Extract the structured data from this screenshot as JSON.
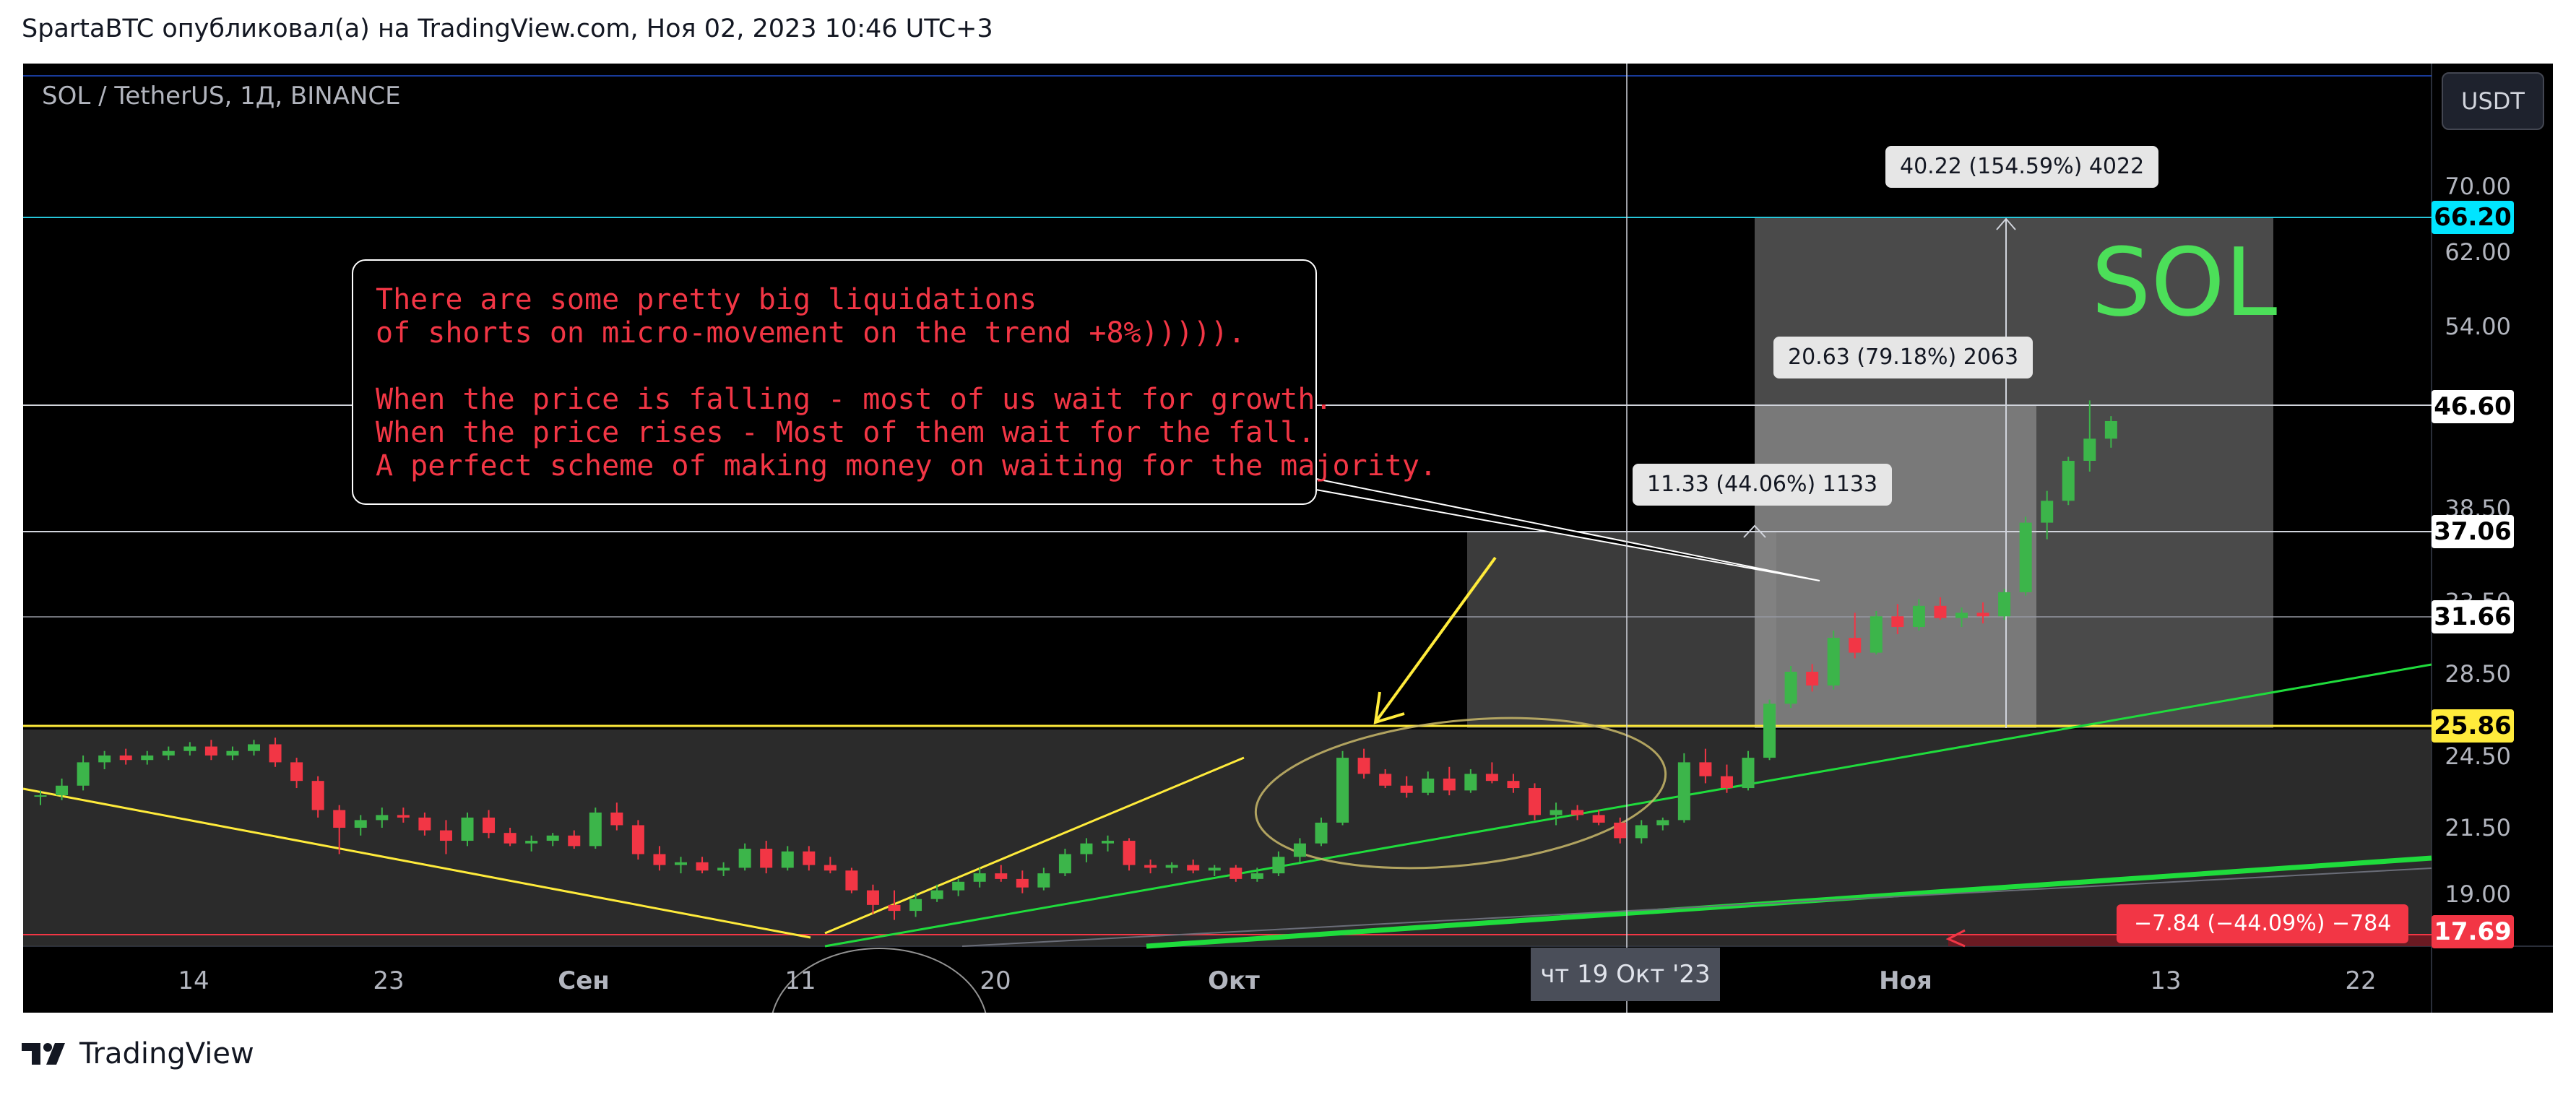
{
  "header": {
    "text": "SpartaBTC опубликовал(а) на TradingView.com, Ноя 02, 2023 10:46 UTC+3"
  },
  "symbol": {
    "title": "SOL / TetherUS, 1Д, BINANCE",
    "currency_button": "USDT"
  },
  "annotation": {
    "callout_text": "There are some pretty big liquidations\nof shorts on micro-movement on the trend +8%))))).\n\nWhen the price is falling - most of us wait for growth.\nWhen the price rises - Most of them wait for the fall.\nA perfect scheme of making money on waiting for the majority.",
    "watermark": "SOL"
  },
  "measurements": {
    "top": "40.22 (154.59%) 4022",
    "mid": "20.63 (79.18%) 2063",
    "low": "11.33 (44.06%) 1133",
    "down": "−7.84 (−44.09%) −784"
  },
  "price_axis": {
    "labels": [
      "70.00",
      "62.00",
      "54.00",
      "38.50",
      "33.50",
      "28.50",
      "24.50",
      "21.50",
      "19.00"
    ],
    "badges": [
      {
        "value": "66.20",
        "bg": "#00e5ff",
        "color": "#000000"
      },
      {
        "value": "46.60",
        "bg": "#ffffff",
        "color": "#000000"
      },
      {
        "value": "37.06",
        "bg": "#ffffff",
        "color": "#000000"
      },
      {
        "value": "31.66",
        "bg": "#ffffff",
        "color": "#000000"
      },
      {
        "value": "25.86",
        "bg": "#ffeb3b",
        "color": "#000000"
      },
      {
        "value": "17.69",
        "bg": "#f23645",
        "color": "#ffffff"
      }
    ]
  },
  "time_axis": {
    "labels": [
      "14",
      "23",
      "Сен",
      "11",
      "20",
      "Окт",
      "Ноя",
      "13",
      "22"
    ],
    "crosshair_date": "чт 19 Окт '23"
  },
  "footer": {
    "brand": "TradingView"
  },
  "colors": {
    "up": "#26a69a",
    "up_candle": "#3cb54a",
    "down": "#f23645",
    "yellow": "#ffeb3b",
    "cyan": "#00e5ff",
    "green_line": "#1fdc3c"
  },
  "chart_data": {
    "type": "candlestick",
    "title": "SOL / TetherUS, 1Д, BINANCE",
    "y_scale": "log",
    "ylim": [
      17.5,
      78
    ],
    "x_ticks": [
      "14",
      "23",
      "Сен",
      "11",
      "20",
      "Окт",
      "Ноя",
      "13",
      "22"
    ],
    "horizontal_levels": [
      66.2,
      46.6,
      37.06,
      31.66,
      25.86,
      17.69
    ],
    "candles": [
      [
        22.9,
        23.1,
        22.5,
        22.9
      ],
      [
        22.9,
        23.6,
        22.7,
        23.3
      ],
      [
        23.3,
        24.6,
        23.1,
        24.3
      ],
      [
        24.3,
        24.8,
        24.0,
        24.6
      ],
      [
        24.6,
        24.9,
        24.2,
        24.4
      ],
      [
        24.4,
        24.8,
        24.2,
        24.6
      ],
      [
        24.6,
        25.0,
        24.4,
        24.8
      ],
      [
        24.8,
        25.2,
        24.6,
        25.0
      ],
      [
        25.0,
        25.3,
        24.4,
        24.6
      ],
      [
        24.6,
        25.0,
        24.4,
        24.8
      ],
      [
        24.8,
        25.3,
        24.6,
        25.1
      ],
      [
        25.1,
        25.4,
        24.1,
        24.3
      ],
      [
        24.3,
        24.5,
        23.2,
        23.5
      ],
      [
        23.5,
        23.7,
        22.0,
        22.3
      ],
      [
        22.3,
        22.5,
        20.6,
        21.6
      ],
      [
        21.6,
        22.1,
        21.3,
        21.9
      ],
      [
        21.9,
        22.4,
        21.6,
        22.1
      ],
      [
        22.1,
        22.4,
        21.8,
        22.0
      ],
      [
        22.0,
        22.2,
        21.3,
        21.5
      ],
      [
        21.5,
        21.9,
        20.6,
        21.1
      ],
      [
        21.1,
        22.2,
        20.9,
        22.0
      ],
      [
        22.0,
        22.3,
        21.2,
        21.4
      ],
      [
        21.4,
        21.6,
        20.9,
        21.0
      ],
      [
        21.0,
        21.3,
        20.7,
        21.1
      ],
      [
        21.1,
        21.4,
        20.9,
        21.3
      ],
      [
        21.3,
        21.5,
        20.8,
        20.9
      ],
      [
        20.9,
        22.4,
        20.8,
        22.2
      ],
      [
        22.2,
        22.6,
        21.5,
        21.7
      ],
      [
        21.7,
        21.9,
        20.4,
        20.6
      ],
      [
        20.6,
        20.9,
        20.0,
        20.2
      ],
      [
        20.2,
        20.5,
        19.9,
        20.3
      ],
      [
        20.3,
        20.5,
        19.9,
        20.0
      ],
      [
        20.0,
        20.3,
        19.8,
        20.1
      ],
      [
        20.1,
        21.0,
        20.0,
        20.8
      ],
      [
        20.8,
        21.1,
        19.9,
        20.1
      ],
      [
        20.1,
        20.9,
        20.0,
        20.7
      ],
      [
        20.7,
        20.9,
        20.0,
        20.2
      ],
      [
        20.2,
        20.5,
        19.9,
        20.0
      ],
      [
        20.0,
        20.1,
        19.2,
        19.3
      ],
      [
        19.3,
        19.5,
        18.5,
        18.8
      ],
      [
        18.8,
        19.3,
        18.3,
        18.6
      ],
      [
        18.6,
        19.2,
        18.4,
        19.0
      ],
      [
        19.0,
        19.5,
        18.9,
        19.3
      ],
      [
        19.3,
        19.7,
        19.1,
        19.6
      ],
      [
        19.6,
        20.1,
        19.4,
        19.9
      ],
      [
        19.9,
        20.2,
        19.6,
        19.7
      ],
      [
        19.7,
        20.0,
        19.2,
        19.4
      ],
      [
        19.4,
        20.1,
        19.3,
        19.9
      ],
      [
        19.9,
        20.8,
        19.8,
        20.6
      ],
      [
        20.6,
        21.2,
        20.3,
        21.0
      ],
      [
        21.0,
        21.3,
        20.7,
        21.1
      ],
      [
        21.1,
        21.2,
        20.0,
        20.2
      ],
      [
        20.2,
        20.4,
        19.9,
        20.1
      ],
      [
        20.1,
        20.3,
        19.9,
        20.2
      ],
      [
        20.2,
        20.4,
        19.9,
        20.0
      ],
      [
        20.0,
        20.2,
        19.8,
        20.1
      ],
      [
        20.1,
        20.2,
        19.6,
        19.7
      ],
      [
        19.7,
        20.1,
        19.6,
        19.9
      ],
      [
        19.9,
        20.7,
        19.8,
        20.5
      ],
      [
        20.5,
        21.2,
        20.3,
        21.0
      ],
      [
        21.0,
        22.0,
        20.9,
        21.8
      ],
      [
        21.8,
        24.8,
        21.7,
        24.5
      ],
      [
        24.5,
        24.9,
        23.6,
        23.8
      ],
      [
        23.8,
        24.0,
        23.2,
        23.3
      ],
      [
        23.3,
        23.7,
        22.8,
        23.0
      ],
      [
        23.0,
        23.9,
        22.9,
        23.6
      ],
      [
        23.6,
        24.1,
        22.9,
        23.1
      ],
      [
        23.1,
        24.0,
        23.0,
        23.8
      ],
      [
        23.8,
        24.3,
        23.4,
        23.5
      ],
      [
        23.5,
        23.8,
        23.0,
        23.2
      ],
      [
        23.2,
        23.4,
        21.9,
        22.1
      ],
      [
        22.1,
        22.6,
        21.7,
        22.3
      ],
      [
        22.3,
        22.5,
        21.9,
        22.1
      ],
      [
        22.1,
        22.3,
        21.7,
        21.8
      ],
      [
        21.8,
        22.0,
        21.0,
        21.2
      ],
      [
        21.2,
        21.9,
        21.0,
        21.7
      ],
      [
        21.7,
        22.0,
        21.5,
        21.9
      ],
      [
        21.9,
        24.7,
        21.8,
        24.3
      ],
      [
        24.3,
        24.9,
        23.4,
        23.7
      ],
      [
        23.7,
        24.2,
        23.0,
        23.2
      ],
      [
        23.2,
        24.8,
        23.1,
        24.5
      ],
      [
        24.5,
        27.2,
        24.4,
        27.0
      ],
      [
        27.0,
        28.9,
        26.8,
        28.6
      ],
      [
        28.6,
        29.0,
        27.6,
        27.9
      ],
      [
        27.9,
        30.8,
        27.7,
        30.4
      ],
      [
        30.4,
        31.8,
        29.3,
        29.6
      ],
      [
        29.6,
        31.9,
        29.5,
        31.6
      ],
      [
        31.6,
        32.3,
        30.6,
        31.0
      ],
      [
        31.0,
        32.6,
        30.8,
        32.2
      ],
      [
        32.2,
        32.7,
        31.4,
        31.5
      ],
      [
        31.5,
        32.1,
        31.0,
        31.8
      ],
      [
        31.8,
        32.4,
        31.2,
        31.6
      ],
      [
        31.6,
        33.2,
        31.4,
        33.0
      ],
      [
        33.0,
        37.8,
        32.8,
        37.4
      ],
      [
        37.4,
        39.6,
        36.3,
        38.9
      ],
      [
        38.9,
        42.1,
        38.6,
        41.8
      ],
      [
        41.8,
        46.6,
        41.0,
        43.5
      ],
      [
        43.5,
        45.3,
        42.8,
        44.9
      ]
    ]
  }
}
